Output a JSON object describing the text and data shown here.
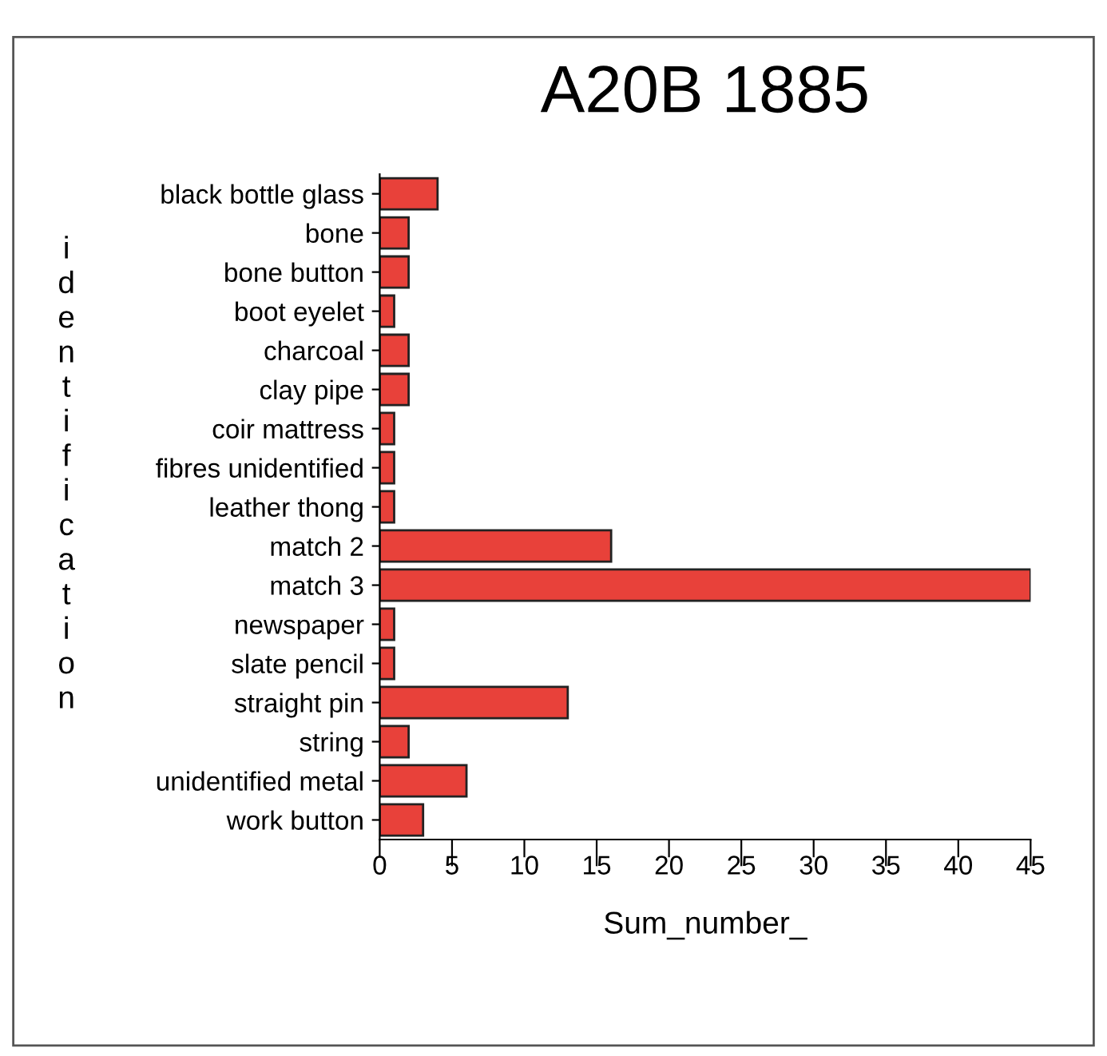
{
  "chart_data": {
    "type": "bar",
    "orientation": "horizontal",
    "title": "A20B 1885",
    "xlabel": "Sum_number_",
    "ylabel": "identification",
    "categories": [
      "black bottle glass",
      "bone",
      "bone button",
      "boot eyelet",
      "charcoal",
      "clay pipe",
      "coir mattress",
      "fibres unidentified",
      "leather thong",
      "match 2",
      "match 3",
      "newspaper",
      "slate pencil",
      "straight pin",
      "string",
      "unidentified metal",
      "work button"
    ],
    "values": [
      4,
      2,
      2,
      1,
      2,
      2,
      1,
      1,
      1,
      16,
      45,
      1,
      1,
      13,
      2,
      6,
      3
    ],
    "color": "#e8413a",
    "xlim": [
      0,
      45
    ],
    "xticks": [
      0,
      5,
      10,
      15,
      20,
      25,
      30,
      35,
      40,
      45
    ],
    "grid": false,
    "legend": false
  }
}
